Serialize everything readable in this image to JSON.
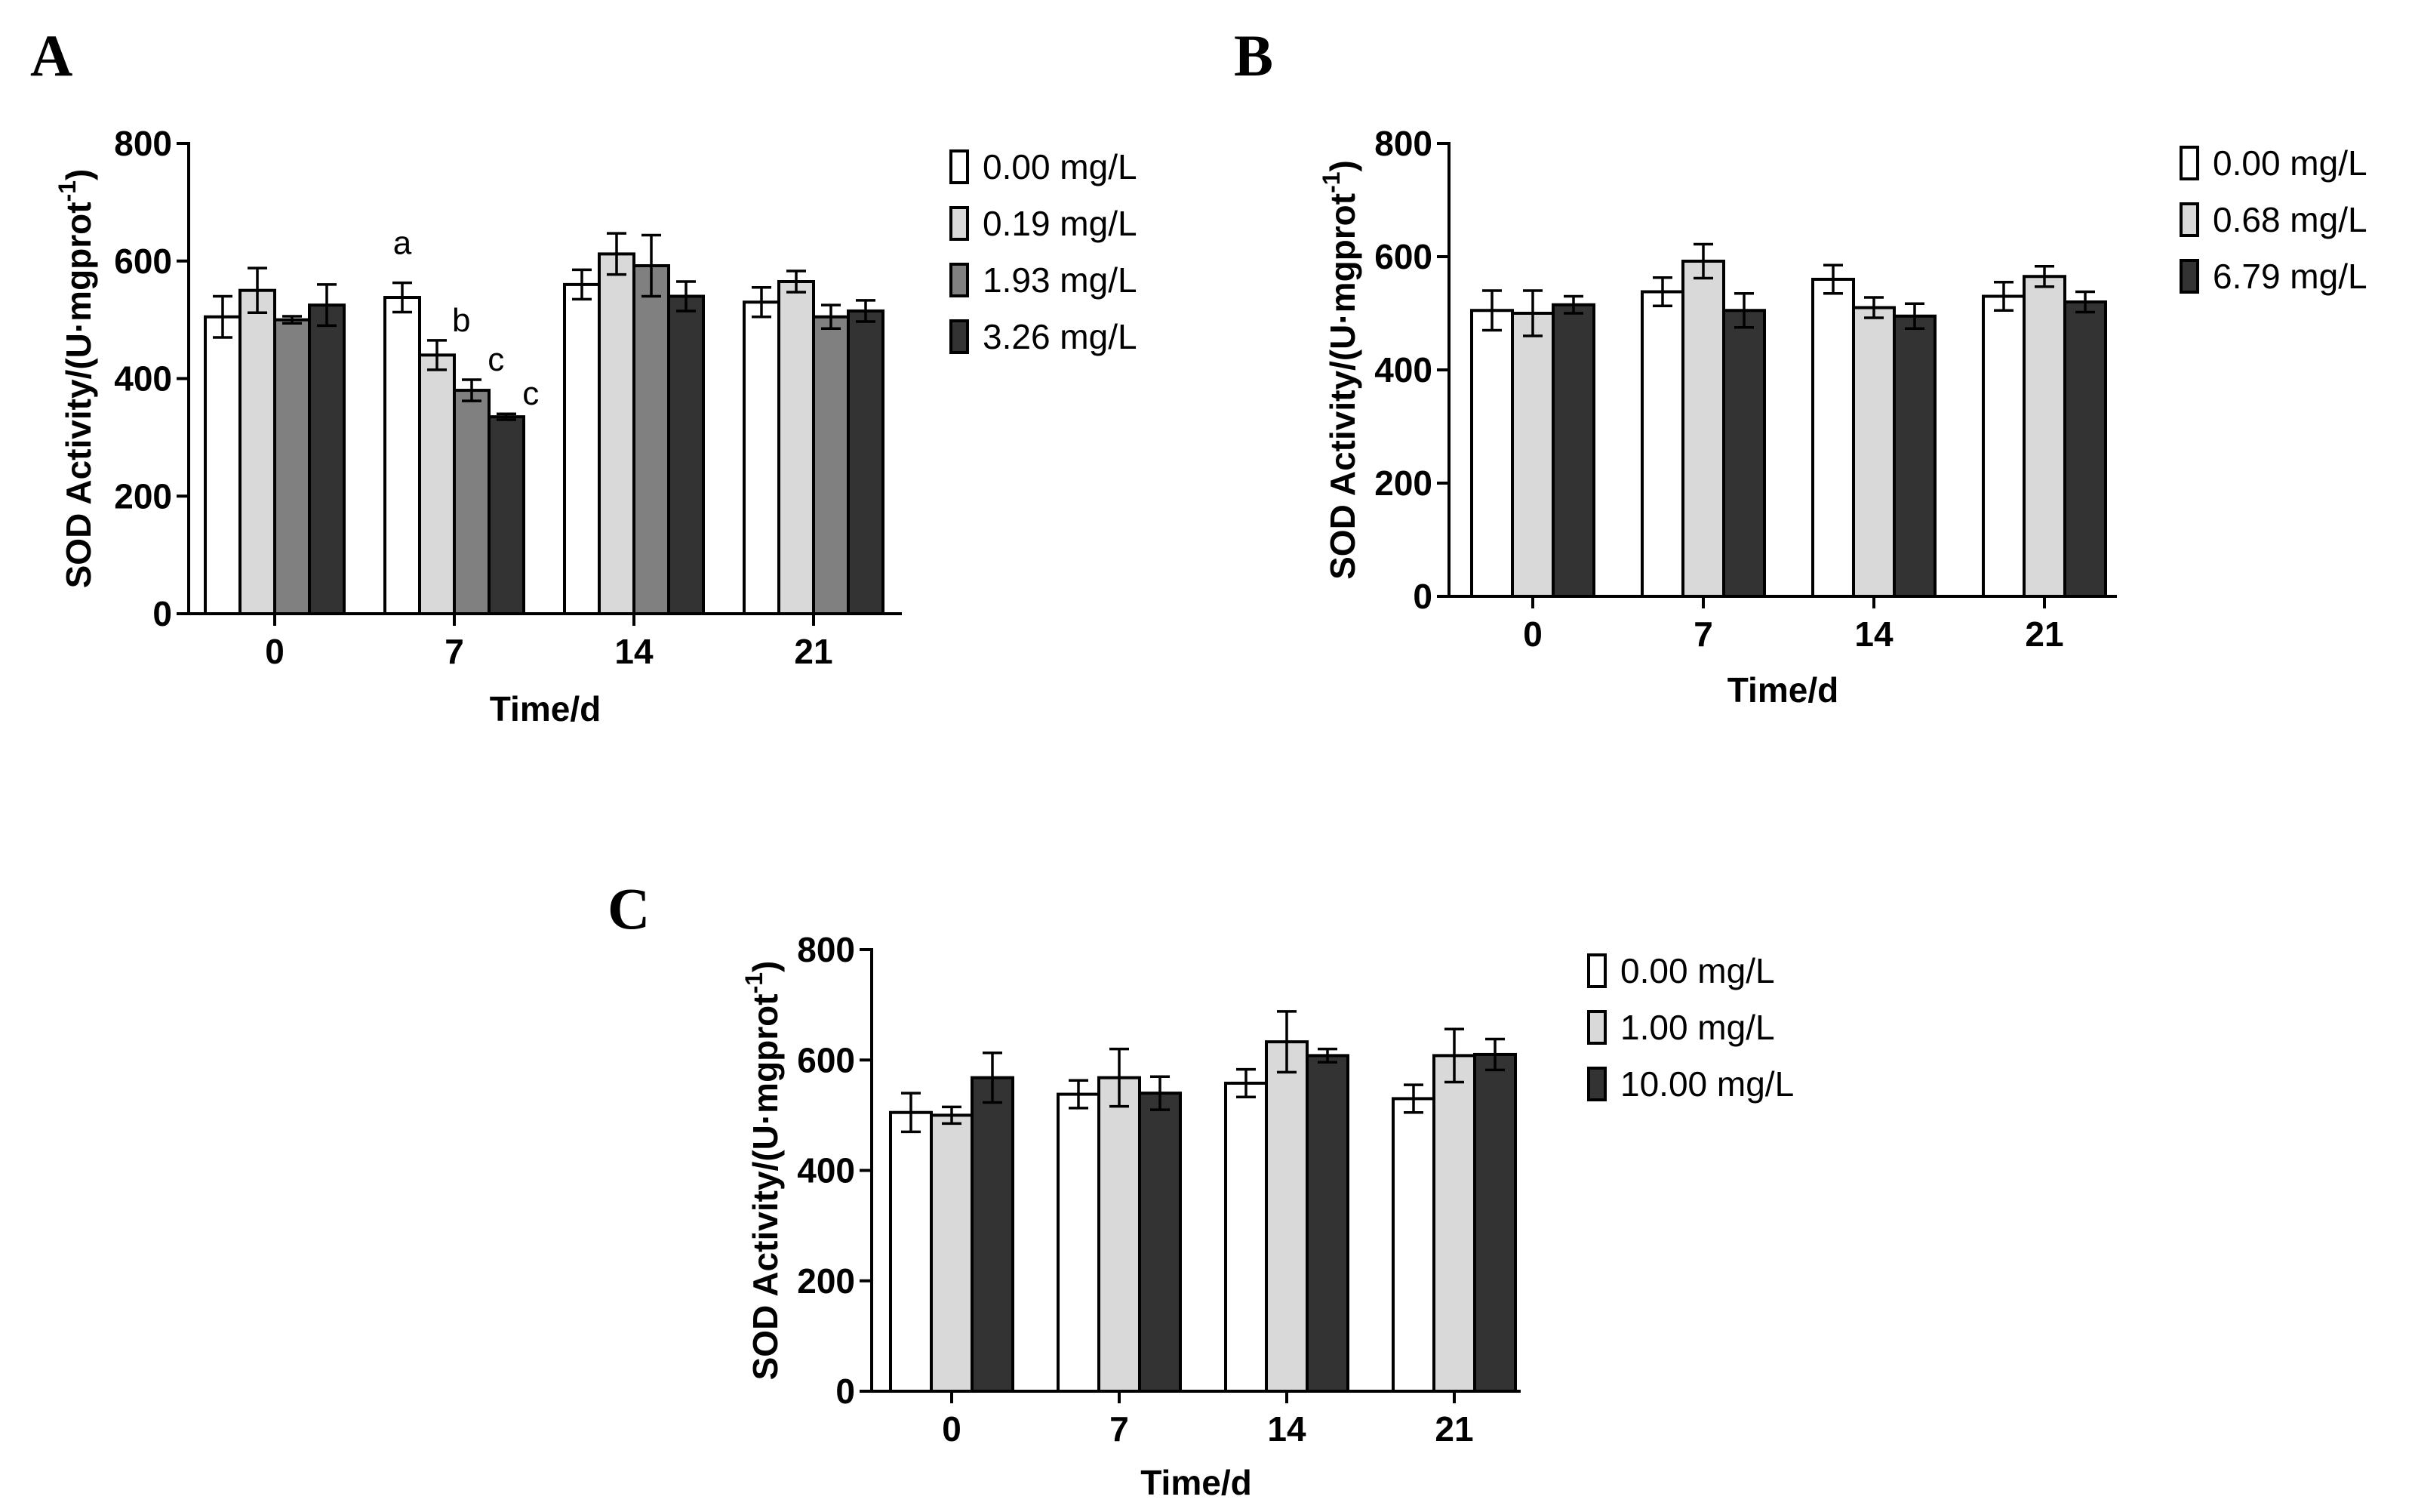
{
  "chart_data": [
    {
      "panel": "A",
      "type": "bar",
      "ylabel": "SOD Activity/(U·mgprot",
      "ylabel_sup": "-1",
      "ylabel_close": ")",
      "xlabel": "Time/d",
      "ylim": [
        0,
        800
      ],
      "yticks": [
        0,
        200,
        400,
        600,
        800
      ],
      "categories": [
        "0",
        "7",
        "14",
        "21"
      ],
      "series": [
        {
          "name": "0.00 mg/L",
          "color": "#ffffff",
          "values": [
            505,
            538,
            560,
            530
          ],
          "errors": [
            35,
            25,
            25,
            25
          ]
        },
        {
          "name": "0.19 mg/L",
          "color": "#d9d9d9",
          "values": [
            550,
            440,
            612,
            565
          ],
          "errors": [
            38,
            25,
            35,
            18
          ]
        },
        {
          "name": "1.93 mg/L",
          "color": "#808080",
          "values": [
            500,
            380,
            592,
            505
          ],
          "errors": [
            6,
            18,
            52,
            20
          ]
        },
        {
          "name": "3.26 mg/L",
          "color": "#333333",
          "values": [
            525,
            335,
            540,
            515
          ],
          "errors": [
            35,
            5,
            25,
            18
          ]
        }
      ],
      "annotations": [
        {
          "text": "a",
          "category": "7",
          "series": 0
        },
        {
          "text": "b",
          "category": "7",
          "series": 1
        },
        {
          "text": "c",
          "category": "7",
          "series": 2
        },
        {
          "text": "c",
          "category": "7",
          "series": 3
        }
      ]
    },
    {
      "panel": "B",
      "type": "bar",
      "ylabel": "SOD Activity/(U·mgprot",
      "ylabel_sup": "-1",
      "ylabel_close": ")",
      "xlabel": "Time/d",
      "ylim": [
        0,
        800
      ],
      "yticks": [
        0,
        200,
        400,
        600,
        800
      ],
      "categories": [
        "0",
        "7",
        "14",
        "21"
      ],
      "series": [
        {
          "name": "0.00 mg/L",
          "color": "#ffffff",
          "values": [
            505,
            538,
            560,
            530
          ],
          "errors": [
            35,
            25,
            25,
            25
          ]
        },
        {
          "name": "0.68 mg/L",
          "color": "#d9d9d9",
          "values": [
            500,
            592,
            510,
            565
          ],
          "errors": [
            40,
            30,
            18,
            18
          ]
        },
        {
          "name": "6.79 mg/L",
          "color": "#333333",
          "values": [
            515,
            505,
            495,
            520
          ],
          "errors": [
            15,
            30,
            22,
            18
          ]
        }
      ]
    },
    {
      "panel": "C",
      "type": "bar",
      "ylabel": "SOD Activity/(U·mgprot",
      "ylabel_sup": "-1",
      "ylabel_close": ")",
      "xlabel": "Time/d",
      "ylim": [
        0,
        800
      ],
      "yticks": [
        0,
        200,
        400,
        600,
        800
      ],
      "categories": [
        "0",
        "7",
        "14",
        "21"
      ],
      "series": [
        {
          "name": "0.00 mg/L",
          "color": "#ffffff",
          "values": [
            505,
            538,
            558,
            530
          ],
          "errors": [
            35,
            25,
            25,
            25
          ]
        },
        {
          "name": "1.00 mg/L",
          "color": "#d9d9d9",
          "values": [
            500,
            568,
            633,
            608
          ],
          "errors": [
            15,
            52,
            55,
            48
          ]
        },
        {
          "name": "10.00 mg/L",
          "color": "#333333",
          "values": [
            568,
            540,
            608,
            610
          ],
          "errors": [
            45,
            30,
            12,
            28
          ]
        }
      ]
    }
  ]
}
